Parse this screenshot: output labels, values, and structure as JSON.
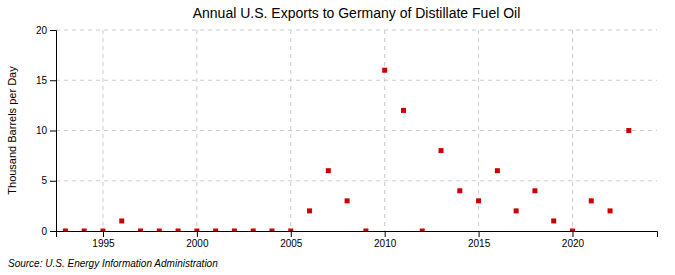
{
  "chart_data": {
    "type": "scatter",
    "title": "Annual U.S. Exports to Germany of Distillate Fuel Oil",
    "ylabel": "Thousand Barrels per Day",
    "source": "Source: U.S. Energy Information Administration",
    "x": [
      1993,
      1994,
      1995,
      1996,
      1997,
      1998,
      1999,
      2000,
      2001,
      2002,
      2003,
      2004,
      2005,
      2006,
      2007,
      2008,
      2009,
      2010,
      2011,
      2012,
      2013,
      2014,
      2015,
      2016,
      2017,
      2018,
      2019,
      2020,
      2021,
      2022,
      2023
    ],
    "values": [
      0,
      0,
      0,
      1,
      0,
      0,
      0,
      0,
      0,
      0,
      0,
      0,
      0,
      2,
      6,
      3,
      0,
      16,
      12,
      0,
      8,
      4,
      3,
      6,
      2,
      4,
      1,
      0,
      3,
      2,
      10
    ],
    "color": "#cc0000",
    "marker": "square",
    "xlim": [
      1992.5,
      2024.5
    ],
    "ylim": [
      0,
      20
    ],
    "xticks": [
      1995,
      2000,
      2005,
      2010,
      2015,
      2020
    ],
    "yticks": [
      0,
      5,
      10,
      15,
      20
    ],
    "grid": true
  }
}
